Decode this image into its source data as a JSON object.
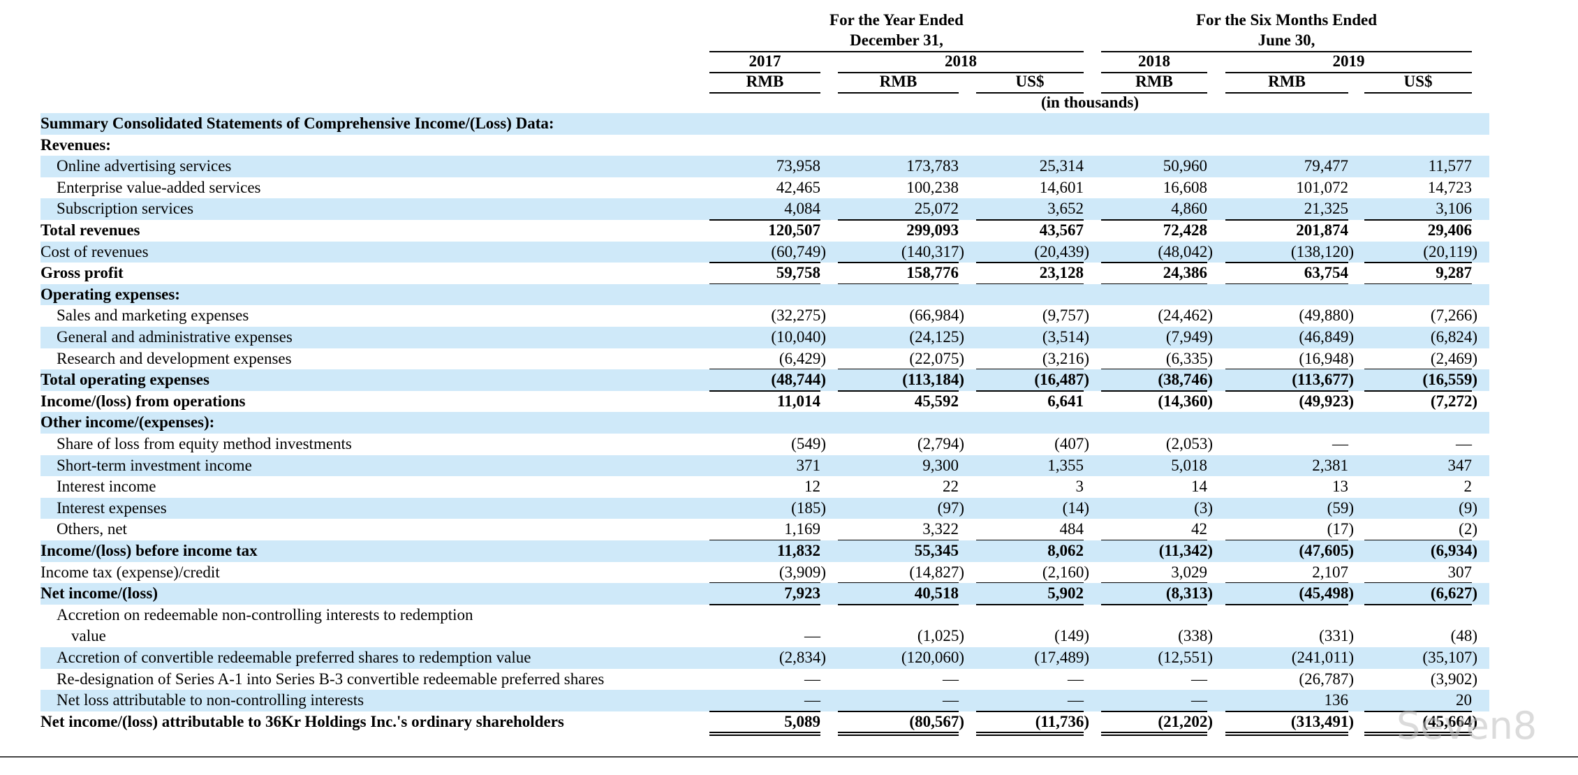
{
  "header": {
    "groups": [
      [
        "For the Year Ended",
        "December 31,"
      ],
      [
        "For the Six Months Ended",
        "June 30,"
      ]
    ],
    "years": [
      "2017",
      "2018",
      "2018",
      "2019"
    ],
    "currencies": [
      "RMB",
      "RMB",
      "US$",
      "RMB",
      "RMB",
      "US$"
    ],
    "unit_note": "(in thousands)"
  },
  "table": {
    "rows": [
      {
        "label": [
          "Summary Consolidated Statements of Comprehensive Income/(Loss) Data:"
        ]
      },
      {
        "label": [
          "Revenues:"
        ]
      },
      {
        "label": [
          "Online advertising services"
        ],
        "values": [
          "73,958",
          "173,783",
          "25,314",
          "50,960",
          "79,477",
          "11,577"
        ]
      },
      {
        "label": [
          "Enterprise value-added services"
        ],
        "values": [
          "42,465",
          "100,238",
          "14,601",
          "16,608",
          "101,072",
          "14,723"
        ]
      },
      {
        "label": [
          "Subscription services"
        ],
        "values": [
          "4,084",
          "25,072",
          "3,652",
          "4,860",
          "21,325",
          "3,106"
        ]
      },
      {
        "label": [
          "Total revenues"
        ],
        "values": [
          "120,507",
          "299,093",
          "43,567",
          "72,428",
          "201,874",
          "29,406"
        ]
      },
      {
        "label": [
          "Cost of revenues"
        ],
        "values": [
          "(60,749)",
          "(140,317)",
          "(20,439)",
          "(48,042)",
          "(138,120)",
          "(20,119)"
        ]
      },
      {
        "label": [
          "Gross profit"
        ],
        "values": [
          "59,758",
          "158,776",
          "23,128",
          "24,386",
          "63,754",
          "9,287"
        ]
      },
      {
        "label": [
          "Operating expenses:"
        ]
      },
      {
        "label": [
          "Sales and marketing expenses"
        ],
        "values": [
          "(32,275)",
          "(66,984)",
          "(9,757)",
          "(24,462)",
          "(49,880)",
          "(7,266)"
        ]
      },
      {
        "label": [
          "General and administrative expenses"
        ],
        "values": [
          "(10,040)",
          "(24,125)",
          "(3,514)",
          "(7,949)",
          "(46,849)",
          "(6,824)"
        ]
      },
      {
        "label": [
          "Research and development expenses"
        ],
        "values": [
          "(6,429)",
          "(22,075)",
          "(3,216)",
          "(6,335)",
          "(16,948)",
          "(2,469)"
        ]
      },
      {
        "label": [
          "Total operating expenses"
        ],
        "values": [
          "(48,744)",
          "(113,184)",
          "(16,487)",
          "(38,746)",
          "(113,677)",
          "(16,559)"
        ]
      },
      {
        "label": [
          "Income/(loss) from operations"
        ],
        "values": [
          "11,014",
          "45,592",
          "6,641",
          "(14,360)",
          "(49,923)",
          "(7,272)"
        ]
      },
      {
        "label": [
          "Other income/(expenses):"
        ]
      },
      {
        "label": [
          "Share of loss from equity method investments"
        ],
        "values": [
          "(549)",
          "(2,794)",
          "(407)",
          "(2,053)",
          "—",
          "—"
        ]
      },
      {
        "label": [
          "Short-term investment income"
        ],
        "values": [
          "371",
          "9,300",
          "1,355",
          "5,018",
          "2,381",
          "347"
        ]
      },
      {
        "label": [
          "Interest income"
        ],
        "values": [
          "12",
          "22",
          "3",
          "14",
          "13",
          "2"
        ]
      },
      {
        "label": [
          "Interest expenses"
        ],
        "values": [
          "(185)",
          "(97)",
          "(14)",
          "(3)",
          "(59)",
          "(9)"
        ]
      },
      {
        "label": [
          "Others, net"
        ],
        "values": [
          "1,169",
          "3,322",
          "484",
          "42",
          "(17)",
          "(2)"
        ]
      },
      {
        "label": [
          "Income/(loss) before income tax"
        ],
        "values": [
          "11,832",
          "55,345",
          "8,062",
          "(11,342)",
          "(47,605)",
          "(6,934)"
        ]
      },
      {
        "label": [
          "Income tax (expense)/credit"
        ],
        "values": [
          "(3,909)",
          "(14,827)",
          "(2,160)",
          "3,029",
          "2,107",
          "307"
        ]
      },
      {
        "label": [
          "Net income/(loss)"
        ],
        "values": [
          "7,923",
          "40,518",
          "5,902",
          "(8,313)",
          "(45,498)",
          "(6,627)"
        ]
      },
      {
        "label": [
          "Accretion on redeemable non-controlling interests to redemption",
          "value"
        ],
        "values": [
          "—",
          "(1,025)",
          "(149)",
          "(338)",
          "(331)",
          "(48)"
        ]
      },
      {
        "label": [
          "Accretion of convertible redeemable preferred shares to redemption value"
        ],
        "values": [
          "(2,834)",
          "(120,060)",
          "(17,489)",
          "(12,551)",
          "(241,011)",
          "(35,107)"
        ]
      },
      {
        "label": [
          "Re-designation of Series A-1 into Series B-3 convertible redeemable preferred shares"
        ],
        "values": [
          "—",
          "—",
          "—",
          "—",
          "(26,787)",
          "(3,902)"
        ]
      },
      {
        "label": [
          "Net loss attributable to non-controlling interests"
        ],
        "values": [
          "—",
          "—",
          "—",
          "—",
          "136",
          "20"
        ]
      },
      {
        "label": [
          "Net income/(loss) attributable to 36Kr Holdings Inc.'s ordinary shareholders"
        ],
        "values": [
          "5,089",
          "(80,567)",
          "(11,736)",
          "(21,202)",
          "(313,491)",
          "(45,664)"
        ]
      }
    ]
  },
  "watermark": "Seven8"
}
